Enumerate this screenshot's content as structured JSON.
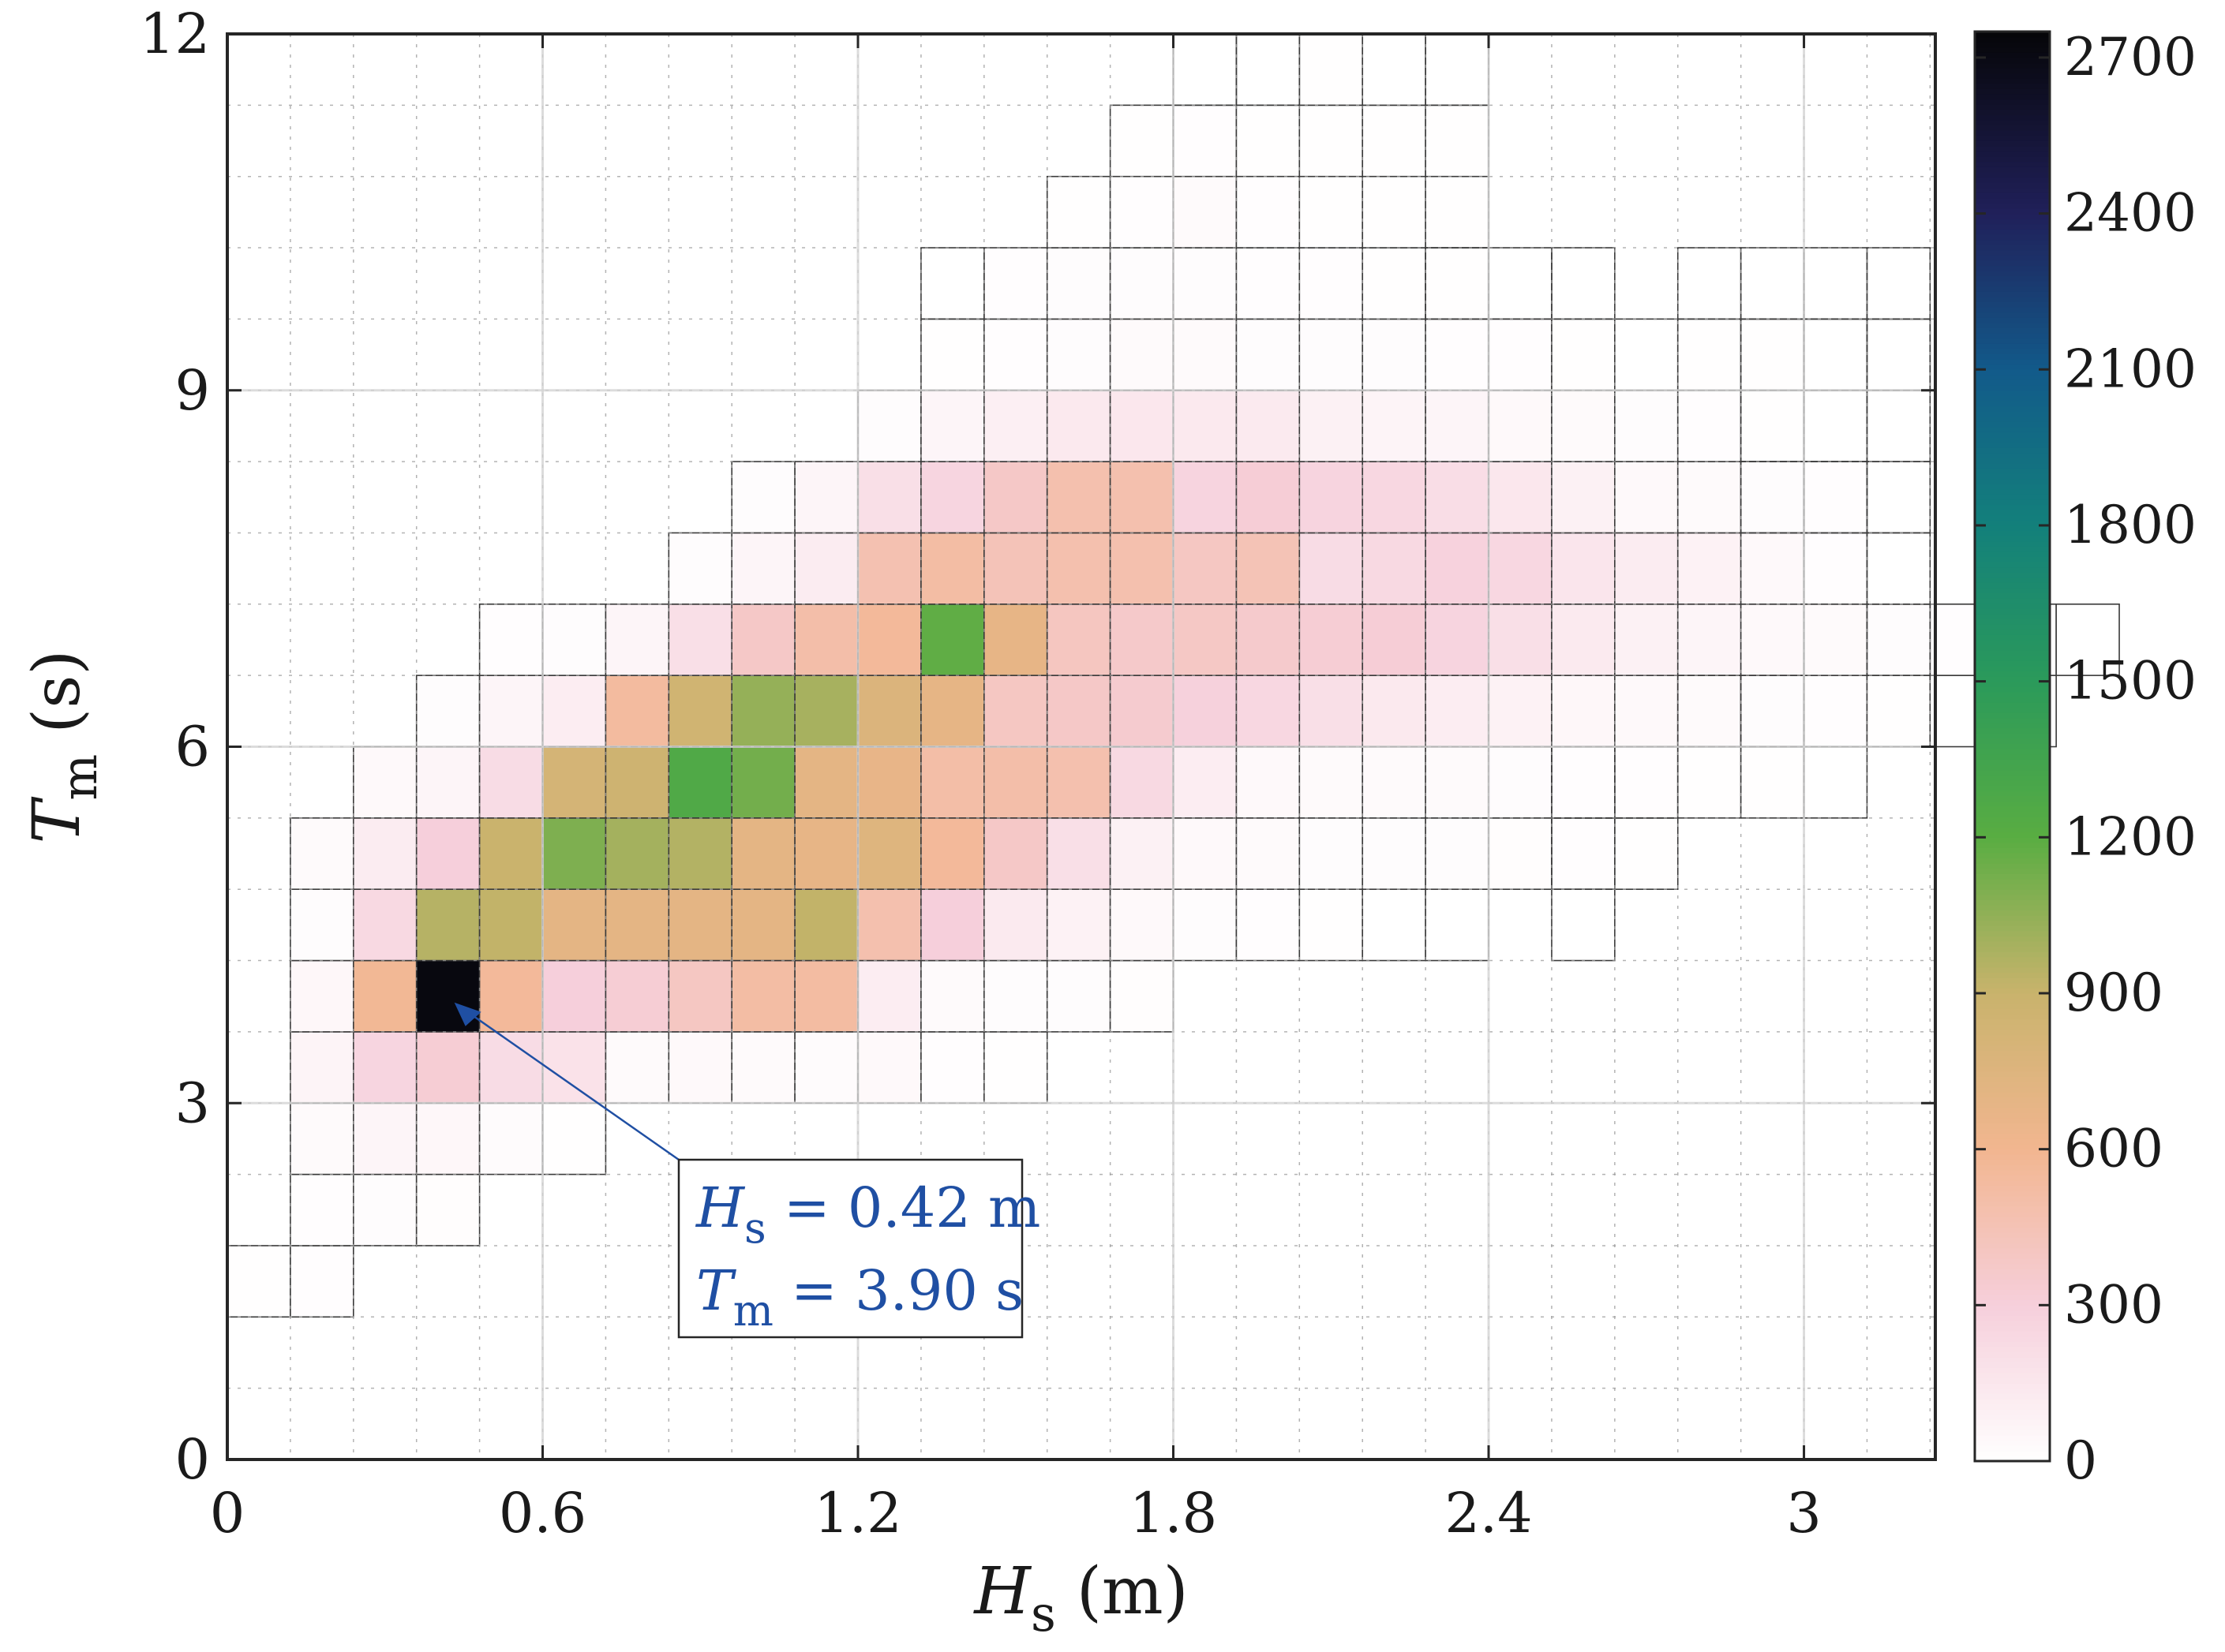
{
  "chart_data": {
    "type": "heatmap",
    "title": "",
    "xlabel": {
      "main": "H",
      "sub": "s",
      "unit": "(m)"
    },
    "ylabel": {
      "main": "T",
      "sub": "m",
      "unit": "(s)"
    },
    "xlim": [
      0,
      3.25
    ],
    "ylim": [
      0,
      12
    ],
    "x_bin_width": 0.12,
    "y_bin_width": 0.6,
    "x_ticks": [
      0,
      0.6,
      1.2,
      1.8,
      2.4,
      3
    ],
    "x_tick_labels": [
      "0",
      "0.6",
      "1.2",
      "1.8",
      "2.4",
      "3"
    ],
    "y_ticks": [
      0,
      3,
      6,
      9,
      12
    ],
    "y_tick_labels": [
      "0",
      "3",
      "6",
      "9",
      "12"
    ],
    "minor_grid": true,
    "colorbar": {
      "min": 0,
      "max": 2750,
      "ticks": [
        0,
        300,
        600,
        900,
        1200,
        1500,
        1800,
        2100,
        2400,
        2700
      ],
      "tick_labels": [
        "0",
        "300",
        "600",
        "900",
        "1200",
        "1500",
        "1800",
        "2100",
        "2400",
        "2700"
      ],
      "colormap": [
        [
          0,
          "#ffffff"
        ],
        [
          300,
          "#f6cfdb"
        ],
        [
          600,
          "#f2b690"
        ],
        [
          900,
          "#c9b36c"
        ],
        [
          1200,
          "#59ad42"
        ],
        [
          1500,
          "#2b9a5a"
        ],
        [
          1800,
          "#13807b"
        ],
        [
          2100,
          "#125a8a"
        ],
        [
          2400,
          "#20205a"
        ],
        [
          2750,
          "#060608"
        ]
      ]
    },
    "rows_description": "each row: [T_m bin start in s, H_s bin start in m, list of counts for consecutive H_s bins of width 0.12 m]",
    "rows": [
      [
        1.2,
        0.0,
        [
          8,
          10
        ]
      ],
      [
        1.8,
        0.12,
        [
          12,
          20,
          15
        ]
      ],
      [
        2.4,
        0.12,
        [
          30,
          60,
          50,
          25,
          8
        ]
      ],
      [
        3.0,
        0.12,
        [
          70,
          260,
          330,
          220,
          180,
          30,
          40,
          30,
          25,
          40,
          12,
          8
        ]
      ],
      [
        3.6,
        0.12,
        [
          50,
          580,
          2720,
          560,
          300,
          330,
          400,
          520,
          530,
          110,
          30,
          20,
          20,
          15
        ]
      ],
      [
        4.2,
        0.12,
        [
          20,
          240,
          950,
          920,
          700,
          700,
          700,
          700,
          920,
          480,
          300,
          130,
          80,
          40,
          20,
          10,
          5,
          3,
          2
        ]
      ],
      [
        4.8,
        0.12,
        [
          30,
          120,
          300,
          890,
          1100,
          1000,
          960,
          700,
          680,
          750,
          560,
          380,
          200,
          90,
          40,
          30,
          20,
          20,
          20,
          15,
          10,
          5
        ]
      ],
      [
        5.4,
        0.24,
        [
          40,
          60,
          220,
          820,
          860,
          1260,
          1130,
          700,
          670,
          510,
          500,
          480,
          240,
          110,
          40,
          30,
          30,
          30,
          20,
          10,
          10,
          5,
          5,
          3
        ]
      ],
      [
        6.0,
        0.36,
        [
          20,
          60,
          110,
          540,
          850,
          1040,
          990,
          770,
          690,
          400,
          380,
          350,
          290,
          250,
          200,
          140,
          110,
          80,
          50,
          40,
          30,
          20,
          10,
          5,
          3,
          2
        ]
      ],
      [
        6.6,
        0.48,
        [
          10,
          20,
          60,
          200,
          380,
          500,
          560,
          1180,
          680,
          410,
          370,
          390,
          360,
          330,
          320,
          270,
          200,
          130,
          90,
          60,
          40,
          30,
          20,
          10,
          5,
          2
        ]
      ],
      [
        7.2,
        0.84,
        [
          20,
          60,
          120,
          470,
          520,
          440,
          480,
          480,
          400,
          450,
          220,
          240,
          280,
          250,
          160,
          120,
          80,
          40,
          10
        ]
      ],
      [
        7.8,
        0.96,
        [
          20,
          60,
          200,
          260,
          380,
          480,
          480,
          270,
          320,
          270,
          250,
          210,
          150,
          90,
          40,
          30,
          20,
          10
        ]
      ],
      [
        8.4,
        1.2,
        [
          20,
          60,
          100,
          140,
          150,
          140,
          130,
          90,
          70,
          60,
          40,
          30,
          20,
          10,
          5
        ]
      ],
      [
        9.0,
        1.32,
        [
          5,
          10,
          20,
          30,
          30,
          20,
          20,
          20,
          10,
          10,
          5,
          0,
          5,
          5,
          3,
          2
        ]
      ],
      [
        9.6,
        1.44,
        [
          10,
          20,
          20,
          20,
          10,
          10,
          5,
          5
        ]
      ],
      [
        10.2,
        1.56,
        [
          5,
          10,
          30,
          10,
          5,
          5,
          5
        ]
      ],
      [
        10.8,
        1.68,
        [
          5,
          10,
          5,
          5,
          5,
          5
        ]
      ],
      [
        11.4,
        2.04,
        [
          5,
          3
        ]
      ]
    ],
    "outline_cells": [
      [
        11.4,
        1.8
      ],
      [
        11.4,
        1.92
      ],
      [
        11.4,
        2.28
      ],
      [
        9.6,
        1.32
      ],
      [
        9.6,
        2.28
      ],
      [
        9.6,
        2.4
      ],
      [
        9.6,
        2.52
      ],
      [
        9.6,
        2.76
      ],
      [
        9.6,
        2.88
      ],
      [
        9.6,
        3.0
      ],
      [
        9.6,
        3.12
      ],
      [
        9.0,
        2.88
      ],
      [
        9.0,
        3.0
      ],
      [
        9.0,
        3.12
      ],
      [
        8.4,
        2.88
      ],
      [
        8.4,
        3.0
      ],
      [
        8.4,
        3.12
      ],
      [
        7.8,
        2.88
      ],
      [
        7.8,
        3.0
      ],
      [
        7.8,
        3.12
      ],
      [
        7.2,
        3.12
      ],
      [
        6.6,
        3.12
      ],
      [
        6.0,
        2.76
      ],
      [
        6.0,
        2.88
      ],
      [
        5.4,
        2.52
      ],
      [
        5.4,
        2.64
      ],
      [
        4.8,
        2.52
      ],
      [
        4.2,
        2.52
      ]
    ],
    "annotation": {
      "line1": {
        "main": "H",
        "sub": "s",
        "value": " = 0.42 m"
      },
      "line2": {
        "main": "T",
        "sub": "m",
        "value": " = 3.90 s"
      },
      "target": {
        "x": 0.42,
        "y": 3.9
      }
    }
  }
}
